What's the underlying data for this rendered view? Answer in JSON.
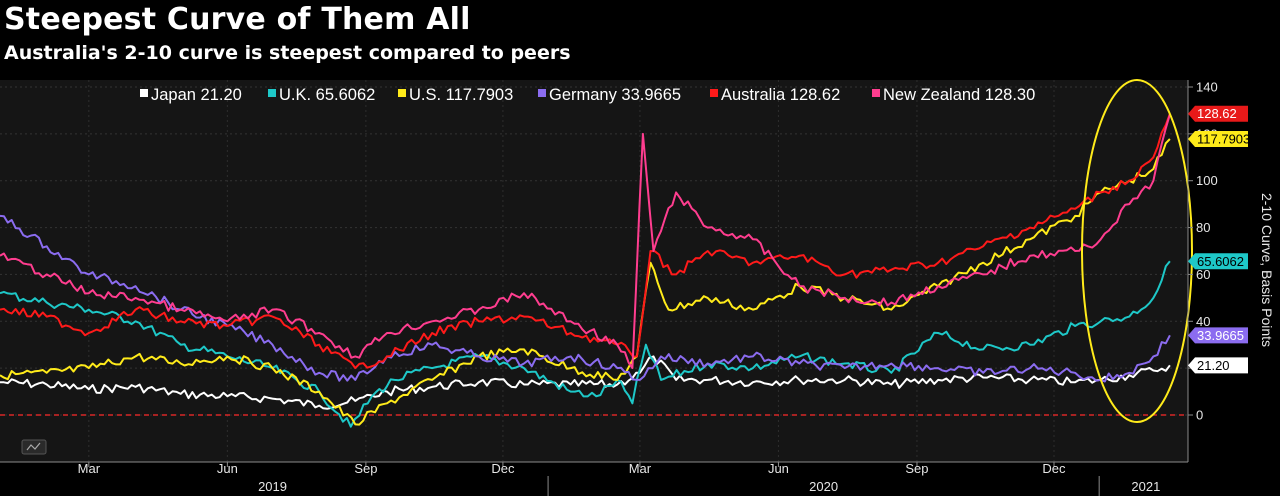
{
  "title": "Steepest Curve of Them All",
  "subtitle": "Australia's 2-10 curve is steepest compared to peers",
  "chart_data": {
    "type": "line",
    "title": "Steepest Curve of Them All",
    "subtitle": "Australia's 2-10 curve is steepest compared to peers",
    "ylabel": "2-10 Curve, Basis Points",
    "ylim": [
      -10,
      145
    ],
    "yticks": [
      0,
      20,
      40,
      60,
      80,
      100,
      120,
      140
    ],
    "ytick_labels": [
      "0",
      "20",
      "40",
      "60",
      "80",
      "100",
      "120",
      "140"
    ],
    "grid": true,
    "legend_position": "top",
    "months": [
      {
        "label": "Mar",
        "date": "2019-03-01"
      },
      {
        "label": "Jun",
        "date": "2019-06-01"
      },
      {
        "label": "Sep",
        "date": "2019-09-01"
      },
      {
        "label": "Dec",
        "date": "2019-12-01"
      },
      {
        "label": "Mar",
        "date": "2020-03-01"
      },
      {
        "label": "Jun",
        "date": "2020-06-01"
      },
      {
        "label": "Sep",
        "date": "2020-09-01"
      },
      {
        "label": "Dec",
        "date": "2020-12-01"
      }
    ],
    "years": [
      {
        "label": "2019",
        "date": "2019-07-01"
      },
      {
        "label": "2020",
        "date": "2020-07-01"
      },
      {
        "label": "2021",
        "date": "2021-01-31"
      }
    ],
    "series": [
      {
        "name": "Japan",
        "last": "21.20",
        "legend_label": "Japan 21.20",
        "flag_label": "21.20",
        "color": "#ffffff",
        "points": [
          [
            "2019-01-01",
            14
          ],
          [
            "2019-02-01",
            13
          ],
          [
            "2019-03-01",
            11
          ],
          [
            "2019-04-01",
            12
          ],
          [
            "2019-05-01",
            9
          ],
          [
            "2019-06-01",
            8
          ],
          [
            "2019-07-01",
            7
          ],
          [
            "2019-08-01",
            4
          ],
          [
            "2019-08-25",
            6
          ],
          [
            "2019-09-15",
            10
          ],
          [
            "2019-10-15",
            12
          ],
          [
            "2019-11-15",
            14
          ],
          [
            "2019-12-15",
            13
          ],
          [
            "2020-01-15",
            13
          ],
          [
            "2020-02-15",
            13
          ],
          [
            "2020-03-01",
            18
          ],
          [
            "2020-03-10",
            25
          ],
          [
            "2020-03-25",
            15
          ],
          [
            "2020-04-15",
            15
          ],
          [
            "2020-05-15",
            14
          ],
          [
            "2020-06-15",
            15
          ],
          [
            "2020-07-15",
            15
          ],
          [
            "2020-08-15",
            13
          ],
          [
            "2020-09-15",
            15
          ],
          [
            "2020-10-15",
            16
          ],
          [
            "2020-11-15",
            15
          ],
          [
            "2020-12-15",
            14
          ],
          [
            "2021-01-01",
            15
          ],
          [
            "2021-01-20",
            17
          ],
          [
            "2021-02-05",
            19
          ],
          [
            "2021-02-16",
            21.2
          ]
        ]
      },
      {
        "name": "U.K.",
        "last": "65.6062",
        "legend_label": "U.K. 65.6062",
        "flag_label": "65.6062",
        "color": "#1ec8c8",
        "points": [
          [
            "2019-01-01",
            52
          ],
          [
            "2019-02-01",
            48
          ],
          [
            "2019-03-01",
            45
          ],
          [
            "2019-04-01",
            40
          ],
          [
            "2019-05-01",
            30
          ],
          [
            "2019-06-01",
            25
          ],
          [
            "2019-07-01",
            20
          ],
          [
            "2019-08-01",
            10
          ],
          [
            "2019-08-22",
            -5
          ],
          [
            "2019-09-05",
            8
          ],
          [
            "2019-09-20",
            15
          ],
          [
            "2019-10-15",
            20
          ],
          [
            "2019-11-15",
            25
          ],
          [
            "2019-12-15",
            20
          ],
          [
            "2020-01-15",
            10
          ],
          [
            "2020-02-01",
            8
          ],
          [
            "2020-02-15",
            15
          ],
          [
            "2020-02-25",
            5
          ],
          [
            "2020-03-05",
            30
          ],
          [
            "2020-03-15",
            15
          ],
          [
            "2020-04-15",
            22
          ],
          [
            "2020-05-15",
            20
          ],
          [
            "2020-06-15",
            25
          ],
          [
            "2020-07-15",
            22
          ],
          [
            "2020-08-15",
            18
          ],
          [
            "2020-09-15",
            35
          ],
          [
            "2020-10-15",
            28
          ],
          [
            "2020-11-15",
            30
          ],
          [
            "2020-12-15",
            38
          ],
          [
            "2021-01-01",
            40
          ],
          [
            "2021-01-20",
            42
          ],
          [
            "2021-02-05",
            50
          ],
          [
            "2021-02-16",
            65.6
          ]
        ]
      },
      {
        "name": "U.S.",
        "last": "117.7903",
        "legend_label": "U.S. 117.7903",
        "flag_label": "117.7903",
        "color": "#ffeb1a",
        "points": [
          [
            "2019-01-01",
            17
          ],
          [
            "2019-02-01",
            18
          ],
          [
            "2019-03-01",
            20
          ],
          [
            "2019-04-01",
            25
          ],
          [
            "2019-05-01",
            22
          ],
          [
            "2019-06-01",
            25
          ],
          [
            "2019-07-01",
            20
          ],
          [
            "2019-08-01",
            10
          ],
          [
            "2019-08-25",
            -4
          ],
          [
            "2019-09-15",
            5
          ],
          [
            "2019-10-15",
            15
          ],
          [
            "2019-11-15",
            25
          ],
          [
            "2019-12-15",
            28
          ],
          [
            "2020-01-15",
            20
          ],
          [
            "2020-02-15",
            15
          ],
          [
            "2020-02-28",
            25
          ],
          [
            "2020-03-08",
            65
          ],
          [
            "2020-03-20",
            45
          ],
          [
            "2020-04-15",
            50
          ],
          [
            "2020-05-15",
            45
          ],
          [
            "2020-06-15",
            55
          ],
          [
            "2020-07-15",
            50
          ],
          [
            "2020-08-15",
            45
          ],
          [
            "2020-09-15",
            55
          ],
          [
            "2020-10-15",
            65
          ],
          [
            "2020-11-15",
            75
          ],
          [
            "2020-12-15",
            85
          ],
          [
            "2021-01-01",
            95
          ],
          [
            "2021-01-20",
            100
          ],
          [
            "2021-02-05",
            105
          ],
          [
            "2021-02-16",
            117.8
          ]
        ]
      },
      {
        "name": "Germany",
        "last": "33.9665",
        "legend_label": "Germany 33.9665",
        "flag_label": "33.9665",
        "color": "#8b6cf0",
        "points": [
          [
            "2019-01-01",
            85
          ],
          [
            "2019-02-01",
            72
          ],
          [
            "2019-03-01",
            60
          ],
          [
            "2019-04-01",
            55
          ],
          [
            "2019-05-01",
            45
          ],
          [
            "2019-06-01",
            38
          ],
          [
            "2019-07-01",
            30
          ],
          [
            "2019-08-01",
            18
          ],
          [
            "2019-08-25",
            15
          ],
          [
            "2019-09-15",
            25
          ],
          [
            "2019-10-15",
            30
          ],
          [
            "2019-11-15",
            25
          ],
          [
            "2019-12-15",
            22
          ],
          [
            "2020-01-15",
            25
          ],
          [
            "2020-02-15",
            20
          ],
          [
            "2020-03-01",
            15
          ],
          [
            "2020-03-15",
            25
          ],
          [
            "2020-04-15",
            22
          ],
          [
            "2020-05-15",
            25
          ],
          [
            "2020-06-15",
            22
          ],
          [
            "2020-07-15",
            20
          ],
          [
            "2020-08-15",
            22
          ],
          [
            "2020-09-15",
            20
          ],
          [
            "2020-10-15",
            18
          ],
          [
            "2020-11-15",
            20
          ],
          [
            "2020-12-15",
            18
          ],
          [
            "2021-01-01",
            15
          ],
          [
            "2021-01-20",
            18
          ],
          [
            "2021-02-05",
            25
          ],
          [
            "2021-02-16",
            34
          ]
        ]
      },
      {
        "name": "Australia",
        "last": "128.62",
        "legend_label": "Australia 128.62",
        "flag_label": "128.62",
        "color": "#ff1a1a",
        "points": [
          [
            "2019-01-01",
            45
          ],
          [
            "2019-02-01",
            42
          ],
          [
            "2019-03-01",
            35
          ],
          [
            "2019-04-01",
            45
          ],
          [
            "2019-05-01",
            40
          ],
          [
            "2019-06-01",
            38
          ],
          [
            "2019-07-01",
            42
          ],
          [
            "2019-08-01",
            30
          ],
          [
            "2019-08-25",
            20
          ],
          [
            "2019-09-15",
            25
          ],
          [
            "2019-10-15",
            35
          ],
          [
            "2019-11-15",
            40
          ],
          [
            "2019-12-15",
            42
          ],
          [
            "2020-01-15",
            35
          ],
          [
            "2020-02-15",
            30
          ],
          [
            "2020-02-28",
            25
          ],
          [
            "2020-03-08",
            70
          ],
          [
            "2020-03-25",
            60
          ],
          [
            "2020-04-15",
            70
          ],
          [
            "2020-05-15",
            65
          ],
          [
            "2020-06-15",
            68
          ],
          [
            "2020-07-15",
            60
          ],
          [
            "2020-08-15",
            62
          ],
          [
            "2020-09-15",
            65
          ],
          [
            "2020-10-15",
            72
          ],
          [
            "2020-11-15",
            80
          ],
          [
            "2020-12-15",
            88
          ],
          [
            "2021-01-01",
            95
          ],
          [
            "2021-01-20",
            100
          ],
          [
            "2021-02-05",
            110
          ],
          [
            "2021-02-16",
            128.6
          ]
        ]
      },
      {
        "name": "New Zealand",
        "last": "128.30",
        "legend_label": "New Zealand 128.30",
        "flag_label": "",
        "color": "#ff3d8f",
        "points": [
          [
            "2019-01-01",
            68
          ],
          [
            "2019-02-01",
            60
          ],
          [
            "2019-03-01",
            52
          ],
          [
            "2019-04-01",
            50
          ],
          [
            "2019-05-01",
            45
          ],
          [
            "2019-06-01",
            40
          ],
          [
            "2019-07-01",
            45
          ],
          [
            "2019-08-01",
            35
          ],
          [
            "2019-08-25",
            25
          ],
          [
            "2019-09-15",
            35
          ],
          [
            "2019-10-15",
            40
          ],
          [
            "2019-11-15",
            45
          ],
          [
            "2019-12-15",
            52
          ],
          [
            "2020-01-15",
            40
          ],
          [
            "2020-02-15",
            30
          ],
          [
            "2020-02-25",
            20
          ],
          [
            "2020-03-03",
            120
          ],
          [
            "2020-03-10",
            70
          ],
          [
            "2020-03-25",
            95
          ],
          [
            "2020-04-15",
            80
          ],
          [
            "2020-05-15",
            75
          ],
          [
            "2020-06-15",
            55
          ],
          [
            "2020-07-15",
            50
          ],
          [
            "2020-08-15",
            48
          ],
          [
            "2020-09-15",
            55
          ],
          [
            "2020-10-15",
            60
          ],
          [
            "2020-11-15",
            68
          ],
          [
            "2020-12-15",
            70
          ],
          [
            "2021-01-01",
            75
          ],
          [
            "2021-01-20",
            90
          ],
          [
            "2021-02-05",
            100
          ],
          [
            "2021-02-16",
            128.3
          ]
        ]
      }
    ],
    "annotations": [
      {
        "type": "ellipse",
        "color": "#ffeb1a",
        "around": "latest values, Jan–Feb 2021"
      }
    ],
    "zero_line": {
      "value": 0,
      "color": "#ff2a2a",
      "style": "dashed"
    }
  }
}
